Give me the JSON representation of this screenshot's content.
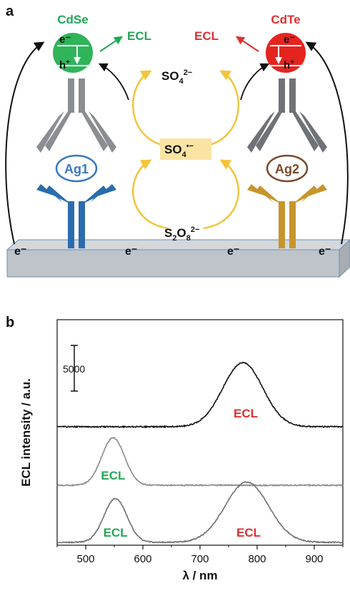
{
  "panel_a": {
    "panel_letter": "a",
    "left": {
      "nanoparticle": "CdSe",
      "emission": "ECL",
      "antigen": "Ag1",
      "electron": "e⁻",
      "hole": "h",
      "hole_charge": "+",
      "color": "#2fb45a",
      "label_color": "#22a855",
      "antibody_color": "#2a6cad",
      "antigen_color": "#3a78c0"
    },
    "right": {
      "nanoparticle": "CdTe",
      "emission": "ECL",
      "antigen": "Ag2",
      "electron": "e⁻",
      "hole": "h",
      "hole_charge": "+",
      "color": "#e52420",
      "label_color": "#e03030",
      "antibody_color": "#c6962c",
      "antigen_color": "#7a4a2a"
    },
    "species": {
      "sulfate_base": "SO",
      "sulfate_sub": "4",
      "sulfate_sup": "2−",
      "radical_base": "SO",
      "radical_sub": "4",
      "radical_sup": "•−",
      "persulfate_s": "S",
      "persulfate_s_sub": "2",
      "persulfate_o": "O",
      "persulfate_o_sub": "8",
      "persulfate_sup": "2−"
    },
    "electrode_electrons": [
      "e⁻",
      "e⁻",
      "e⁻",
      "e⁻"
    ],
    "colors": {
      "electrode": "#bfc4ca",
      "arrows_yellow": "#f4c43a",
      "radical_box": "#fbe3a3",
      "igg_grey": "#8a8d91"
    }
  },
  "panel_b": {
    "panel_letter": "b",
    "chart_data": {
      "type": "line",
      "xlabel": "λ / nm",
      "ylabel": "ECL intensity / a.u.",
      "xlim": [
        450,
        950
      ],
      "xticks": [
        500,
        600,
        700,
        800,
        900
      ],
      "scale_bar_label": "5000",
      "scale_bar_value": 5000,
      "series": [
        {
          "color": "#111111",
          "offset": 0,
          "peaks": [
            {
              "center": 775,
              "height": 7000,
              "width": 35
            }
          ],
          "label": "ECL",
          "label_color": "#e03030",
          "label_x": 780
        },
        {
          "color": "#8a8a8a",
          "offset": 0,
          "peaks": [
            {
              "center": 548,
              "height": 5200,
              "width": 20
            }
          ],
          "label": "ECL",
          "label_color": "#22a855",
          "label_x": 548
        },
        {
          "color": "#707070",
          "offset": 0,
          "peaks": [
            {
              "center": 552,
              "height": 4800,
              "width": 20
            },
            {
              "center": 782,
              "height": 6600,
              "width": 38
            }
          ],
          "label": "ECL",
          "label_color": "#22a855",
          "label_x": 552,
          "label2": "ECL",
          "label2_color": "#e03030",
          "label2_x": 785
        }
      ]
    }
  }
}
